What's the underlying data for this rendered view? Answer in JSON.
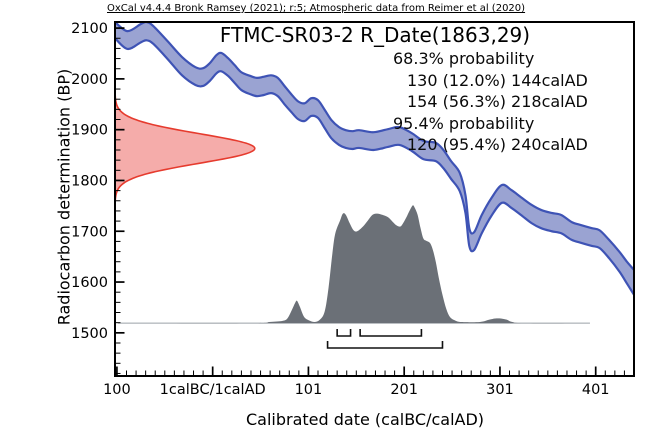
{
  "chart_data": {
    "type": "area",
    "title": "FTMC-SR03-2 R_Date(1863,29)",
    "attribution": "OxCal v4.4.4 Bronk Ramsey (2021); r:5; Atmospheric data from Reimer et al (2020)",
    "xlabel": "Calibrated date (calBC/calAD)",
    "ylabel": "Radiocarbon determination (BP)",
    "readout": [
      {
        "text": "68.3% probability",
        "indent": 0
      },
      {
        "text": "130 (12.0%) 144calAD",
        "indent": 1
      },
      {
        "text": "154 (56.3%) 218calAD",
        "indent": 1
      },
      {
        "text": "95.4% probability",
        "indent": 0
      },
      {
        "text": "120 (95.4%) 240calAD",
        "indent": 1
      }
    ],
    "x_axis": {
      "domain": [
        -102,
        440
      ],
      "minor_step": 10,
      "major_ticks": [
        {
          "value": -100,
          "label": "100"
        },
        {
          "value": 0,
          "label": "1calBC/1calAD"
        },
        {
          "value": 100,
          "label": "101"
        },
        {
          "value": 200,
          "label": "201"
        },
        {
          "value": 300,
          "label": "301"
        },
        {
          "value": 400,
          "label": "401"
        }
      ]
    },
    "y_axis": {
      "domain": [
        1415,
        2112
      ],
      "minor_step": 20,
      "minor_range": [
        1420,
        2110
      ],
      "major_ticks": [
        {
          "value": 2100,
          "label": "2100"
        },
        {
          "value": 2000,
          "label": "2000"
        },
        {
          "value": 1900,
          "label": "1900"
        },
        {
          "value": 1800,
          "label": "1800"
        },
        {
          "value": 1700,
          "label": "1700"
        },
        {
          "value": 1600,
          "label": "1600"
        },
        {
          "value": 1500,
          "label": "1500"
        }
      ]
    },
    "calibration_curve": {
      "name": "IntCal20 atmospheric curve",
      "points": [
        [
          -102,
          2112,
          2080
        ],
        [
          -89,
          2094,
          2059
        ],
        [
          -75,
          2108,
          2072
        ],
        [
          -69,
          2112,
          2076
        ],
        [
          -62,
          2104,
          2069
        ],
        [
          -47,
          2074,
          2039
        ],
        [
          -32,
          2043,
          2007
        ],
        [
          -18,
          2023,
          1988
        ],
        [
          -10,
          2021,
          1986
        ],
        [
          -3,
          2031,
          1996
        ],
        [
          4,
          2047,
          2011
        ],
        [
          9,
          2051,
          2015
        ],
        [
          16,
          2041,
          2006
        ],
        [
          23,
          2027,
          1992
        ],
        [
          30,
          2013,
          1978
        ],
        [
          39,
          2006,
          1970
        ],
        [
          46,
          2002,
          1966
        ],
        [
          53,
          2004,
          1968
        ],
        [
          61,
          2007,
          1972
        ],
        [
          68,
          2002,
          1966
        ],
        [
          75,
          1986,
          1950
        ],
        [
          82,
          1970,
          1935
        ],
        [
          89,
          1956,
          1921
        ],
        [
          96,
          1952,
          1917
        ],
        [
          103,
          1962,
          1927
        ],
        [
          110,
          1958,
          1923
        ],
        [
          117,
          1939,
          1903
        ],
        [
          124,
          1919,
          1883
        ],
        [
          132,
          1905,
          1870
        ],
        [
          139,
          1899,
          1864
        ],
        [
          146,
          1897,
          1862
        ],
        [
          153,
          1899,
          1864
        ],
        [
          168,
          1895,
          1860
        ],
        [
          183,
          1901,
          1866
        ],
        [
          195,
          1905,
          1870
        ],
        [
          208,
          1893,
          1858
        ],
        [
          220,
          1878,
          1842
        ],
        [
          233,
          1874,
          1838
        ],
        [
          241,
          1860,
          1824
        ],
        [
          249,
          1838,
          1803
        ],
        [
          258,
          1815,
          1779
        ],
        [
          264,
          1771,
          1736
        ],
        [
          268,
          1706,
          1671
        ],
        [
          273,
          1698,
          1663
        ],
        [
          281,
          1732,
          1696
        ],
        [
          291,
          1765,
          1730
        ],
        [
          302,
          1791,
          1756
        ],
        [
          312,
          1781,
          1746
        ],
        [
          322,
          1767,
          1732
        ],
        [
          333,
          1752,
          1716
        ],
        [
          343,
          1742,
          1706
        ],
        [
          354,
          1736,
          1700
        ],
        [
          364,
          1732,
          1696
        ],
        [
          375,
          1718,
          1683
        ],
        [
          385,
          1712,
          1677
        ],
        [
          396,
          1706,
          1671
        ],
        [
          404,
          1702,
          1667
        ],
        [
          414,
          1683,
          1647
        ],
        [
          425,
          1659,
          1620
        ],
        [
          433,
          1639,
          1596
        ],
        [
          440,
          1624,
          1575
        ]
      ]
    },
    "likelihood": {
      "label": "R_Date(1863,29)",
      "mean_bp": 1863,
      "sigma_bp": 29,
      "peak_years": 146
    },
    "posterior": {
      "baseline_bp": 1519,
      "height_bp": 232,
      "points": [
        [
          -99,
          0
        ],
        [
          40,
          0
        ],
        [
          59,
          0.01
        ],
        [
          73,
          0.02
        ],
        [
          78,
          0.04
        ],
        [
          82,
          0.1
        ],
        [
          86,
          0.17
        ],
        [
          88,
          0.19
        ],
        [
          91,
          0.14
        ],
        [
          95,
          0.06
        ],
        [
          99,
          0.03
        ],
        [
          106,
          0.01
        ],
        [
          112,
          0.03
        ],
        [
          117,
          0.1
        ],
        [
          121,
          0.3
        ],
        [
          125,
          0.59
        ],
        [
          128,
          0.76
        ],
        [
          133,
          0.87
        ],
        [
          136,
          0.93
        ],
        [
          139,
          0.92
        ],
        [
          143,
          0.85
        ],
        [
          147,
          0.79
        ],
        [
          151,
          0.78
        ],
        [
          157,
          0.82
        ],
        [
          162,
          0.87
        ],
        [
          167,
          0.92
        ],
        [
          172,
          0.93
        ],
        [
          177,
          0.92
        ],
        [
          183,
          0.9
        ],
        [
          188,
          0.86
        ],
        [
          192,
          0.83
        ],
        [
          196,
          0.82
        ],
        [
          199,
          0.85
        ],
        [
          203,
          0.91
        ],
        [
          206,
          0.96
        ],
        [
          209,
          1.0
        ],
        [
          211,
          0.98
        ],
        [
          214,
          0.92
        ],
        [
          217,
          0.81
        ],
        [
          220,
          0.72
        ],
        [
          223,
          0.7
        ],
        [
          227,
          0.68
        ],
        [
          230,
          0.62
        ],
        [
          233,
          0.52
        ],
        [
          236,
          0.39
        ],
        [
          240,
          0.24
        ],
        [
          244,
          0.12
        ],
        [
          248,
          0.05
        ],
        [
          254,
          0.02
        ],
        [
          260,
          0.01
        ],
        [
          279,
          0.01
        ],
        [
          289,
          0.03
        ],
        [
          295,
          0.04
        ],
        [
          301,
          0.04
        ],
        [
          307,
          0.03
        ],
        [
          313,
          0.01
        ],
        [
          326,
          0
        ],
        [
          394,
          0
        ]
      ]
    },
    "ranges": [
      {
        "probability": "12.0%",
        "from": 130,
        "to": 144,
        "level": 1
      },
      {
        "probability": "56.3%",
        "from": 154,
        "to": 218,
        "level": 1
      },
      {
        "probability": "95.4%",
        "from": 120,
        "to": 240,
        "level": 2
      }
    ],
    "colors": {
      "curve_fill": "#9aa3d2",
      "curve_stroke": "#3e53b5",
      "likelihood_fill": "#f5acaa",
      "likelihood_stroke": "#e63b2e",
      "posterior_fill": "#6b7077",
      "posterior_baseline": "#9aa0a6",
      "bracket": "#111111",
      "frame": "#000000"
    }
  }
}
